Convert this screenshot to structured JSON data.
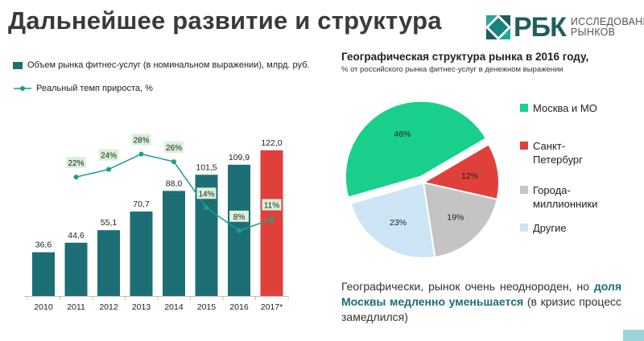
{
  "header": {
    "title": "Дальнейшее развитие и структура"
  },
  "logo": {
    "mark": "РБК",
    "line1": "ИССЛЕДОВАНИЯ",
    "line2": "РЫНКОВ"
  },
  "bar_chart": {
    "legend_bar": "Объем рынка фитнес-услуг (в номинальном выражении), млрд. руб.",
    "legend_line": "Реальный темп прироста, %"
  },
  "pie_chart": {
    "title": "Географическая структура рынка в 2016 году,",
    "subtitle": "% от российского рынка  фитнес-услуг в денежном выражении"
  },
  "note": {
    "text_before": "Географически, рынок очень неоднороден, но ",
    "highlight": "доля Москвы медленно уменьшается",
    "text_after": " (в кризис процесс замедлился)"
  },
  "colors": {
    "bar": "#1d6e75",
    "bar_forecast": "#e0403c",
    "line": "#19a08b",
    "label_bg": "#d9f0d9",
    "moscow": "#18cf8c",
    "spb": "#e0403c",
    "millionaires": "#c4c4c4",
    "other": "#cde4f5"
  },
  "chart_data": [
    {
      "type": "bar",
      "categories": [
        "2010",
        "2011",
        "2012",
        "2013",
        "2014",
        "2015",
        "2016",
        "2017*"
      ],
      "series": [
        {
          "name": "Объем рынка фитнес-услуг (в номинальном выражении), млрд. руб.",
          "values": [
            36.6,
            44.6,
            55.1,
            70.7,
            88.0,
            101.5,
            109.9,
            122.0
          ],
          "labels": [
            "36,6",
            "44,6",
            "55,1",
            "70,7",
            "",
            "101,5",
            "109,9",
            "122,0"
          ]
        },
        {
          "name": "Реальный темп прироста, %",
          "type": "line",
          "values": [
            null,
            22,
            24,
            28,
            26,
            14,
            8,
            11
          ],
          "labels": [
            "",
            "22%",
            "24%",
            "28%",
            "26%",
            "14%",
            "8%",
            "11%"
          ]
        }
      ],
      "partial_label": {
        "category": "2014",
        "text": "88,0"
      },
      "forecast_category": "2017*",
      "ylim": [
        0,
        130
      ],
      "xlabel": "",
      "ylabel": ""
    },
    {
      "type": "pie",
      "title": "Географическая структура рынка в 2016 году,",
      "labels": [
        "Москва и МО",
        "Санкт-\nПетербург",
        "Города-\nмиллионники",
        "Другие"
      ],
      "values": [
        46,
        12,
        19,
        23
      ],
      "value_labels": [
        "46%",
        "12%",
        "19%",
        "23%"
      ]
    }
  ]
}
